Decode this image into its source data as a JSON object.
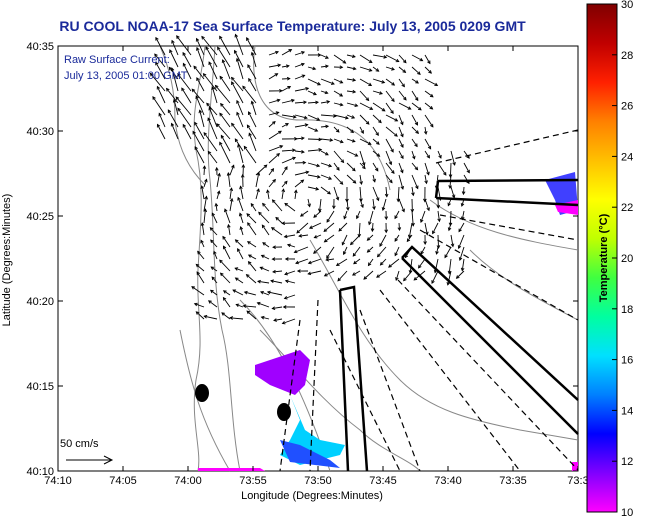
{
  "title": "RU COOL  NOAA-17  Sea Surface Temperature:  July 13, 2005 0209 GMT",
  "annotation": {
    "line1": "Raw Surface Current:",
    "line2": "July 13, 2005 01:00 GMT"
  },
  "scale_label": "50 cm/s",
  "axes": {
    "xlabel": "Longitude (Degrees:Minutes)",
    "ylabel": "Latitude (Degrees:Minutes)",
    "x_ticks": [
      "74:10",
      "74:05",
      "74:00",
      "73:55",
      "73:50",
      "73:45",
      "73:40",
      "73:35",
      "73:3"
    ],
    "y_ticks": [
      "40:35",
      "40:30",
      "40:25",
      "40:20",
      "40:15",
      "40:10"
    ]
  },
  "colorbar": {
    "label": "Temperature (°C)",
    "ticks": [
      "30",
      "28",
      "26",
      "24",
      "22",
      "20",
      "18",
      "16",
      "14",
      "12",
      "10"
    ],
    "range": [
      10,
      30
    ],
    "colors": [
      "#ff00ff",
      "#8000ff",
      "#0000ff",
      "#0080ff",
      "#00e0ff",
      "#00ffa0",
      "#40ff40",
      "#c0ff00",
      "#ffff00",
      "#ffc000",
      "#ff8000",
      "#ff2000",
      "#c00000",
      "#800000"
    ]
  }
}
